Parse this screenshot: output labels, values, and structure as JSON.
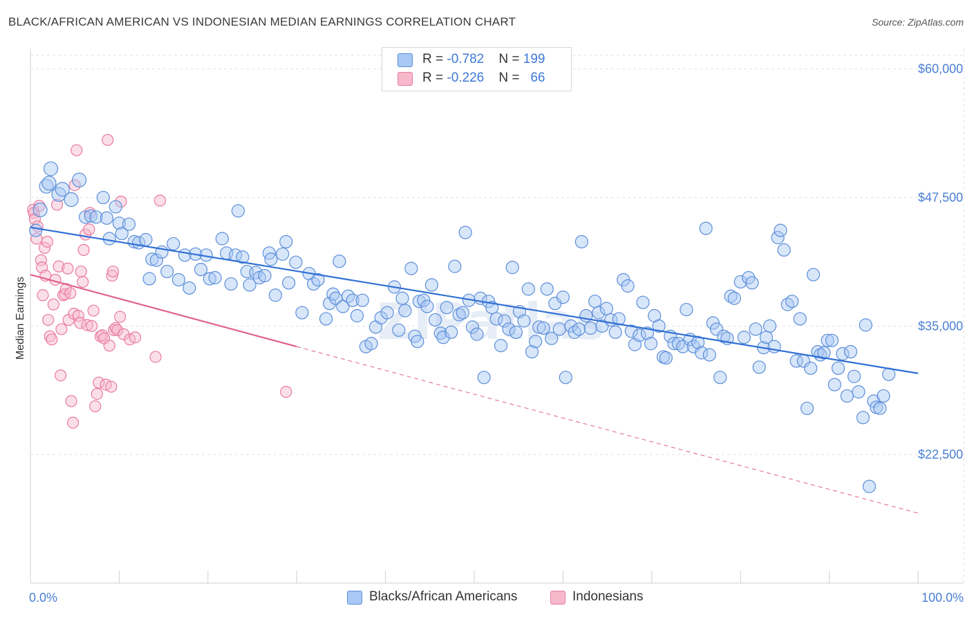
{
  "title": "BLACK/AFRICAN AMERICAN VS INDONESIAN MEDIAN EARNINGS CORRELATION CHART",
  "source": "Source: ZipAtlas.com",
  "watermark": "ZIPatlas",
  "colors": {
    "blue_fill": "#a9c8f3",
    "blue_stroke": "#5b8ed8",
    "blue_line": "#2f6fd4",
    "pink_fill": "#f7b8cc",
    "pink_stroke": "#e97aa0",
    "pink_line": "#e06090",
    "axis_text": "#4a7fd4"
  },
  "legend_top": {
    "rows": [
      {
        "r_label": "R = ",
        "r_value": "-0.782",
        "n_label": "N = ",
        "n_value": "199"
      },
      {
        "r_label": "R = ",
        "r_value": "-0.226",
        "n_label": "N = ",
        "n_value": "66"
      }
    ]
  },
  "legend_bottom": {
    "items": [
      "Blacks/African Americans",
      "Indonesians"
    ]
  },
  "chart_data": {
    "type": "scatter",
    "xlabel": "",
    "ylabel": "Median Earnings",
    "xlim": [
      0,
      100
    ],
    "ylim": [
      10000,
      62000
    ],
    "x_tick_labels": [
      "0.0%",
      "100.0%"
    ],
    "y_ticks": [
      {
        "value": 22500,
        "label": "$22,500"
      },
      {
        "value": 35000,
        "label": "$35,000"
      },
      {
        "value": 47500,
        "label": "$47,500"
      },
      {
        "value": 60000,
        "label": "$60,000"
      }
    ],
    "grid": true,
    "legend_position": "top-center",
    "series": [
      {
        "name": "Blacks/African Americans",
        "trend": {
          "x": [
            0,
            100
          ],
          "y": [
            44600,
            30400
          ],
          "dashed_to": null
        },
        "points": [
          [
            0.6,
            44300
          ],
          [
            1.1,
            46300
          ],
          [
            1.8,
            48600
          ],
          [
            2.1,
            48900
          ],
          [
            2.3,
            50300
          ],
          [
            3.2,
            47800
          ],
          [
            3.6,
            48300
          ],
          [
            4.6,
            47300
          ],
          [
            5.5,
            49200
          ],
          [
            6.2,
            45600
          ],
          [
            6.8,
            45700
          ],
          [
            7.4,
            45600
          ],
          [
            8.2,
            47500
          ],
          [
            8.6,
            45500
          ],
          [
            8.9,
            43500
          ],
          [
            9.6,
            46600
          ],
          [
            10.0,
            45000
          ],
          [
            10.3,
            44000
          ],
          [
            11.1,
            44900
          ],
          [
            11.7,
            43200
          ],
          [
            12.2,
            43100
          ],
          [
            13.0,
            43400
          ],
          [
            13.4,
            39600
          ],
          [
            13.7,
            41500
          ],
          [
            14.2,
            41400
          ],
          [
            14.8,
            42200
          ],
          [
            15.4,
            40300
          ],
          [
            16.1,
            43000
          ],
          [
            16.7,
            39500
          ],
          [
            17.4,
            41900
          ],
          [
            17.9,
            38700
          ],
          [
            18.6,
            42000
          ],
          [
            19.2,
            40500
          ],
          [
            19.8,
            41900
          ],
          [
            20.2,
            39600
          ],
          [
            20.8,
            39700
          ],
          [
            21.6,
            43500
          ],
          [
            22.1,
            42100
          ],
          [
            22.6,
            39100
          ],
          [
            23.1,
            41900
          ],
          [
            23.4,
            46200
          ],
          [
            23.9,
            41700
          ],
          [
            24.4,
            40300
          ],
          [
            24.7,
            39000
          ],
          [
            25.4,
            40200
          ],
          [
            25.8,
            39700
          ],
          [
            26.4,
            39900
          ],
          [
            26.9,
            42100
          ],
          [
            27.1,
            41500
          ],
          [
            27.6,
            38000
          ],
          [
            28.4,
            42000
          ],
          [
            28.8,
            43200
          ],
          [
            29.1,
            39200
          ],
          [
            29.9,
            41200
          ],
          [
            30.6,
            36300
          ],
          [
            31.4,
            40100
          ],
          [
            31.9,
            39100
          ],
          [
            32.4,
            39500
          ],
          [
            33.3,
            35700
          ],
          [
            33.7,
            37200
          ],
          [
            34.1,
            38100
          ],
          [
            34.4,
            37700
          ],
          [
            34.8,
            41300
          ],
          [
            35.2,
            36900
          ],
          [
            35.8,
            37900
          ],
          [
            36.3,
            37500
          ],
          [
            36.8,
            36000
          ],
          [
            37.4,
            37500
          ],
          [
            37.8,
            33000
          ],
          [
            38.4,
            33300
          ],
          [
            38.9,
            34900
          ],
          [
            39.5,
            35800
          ],
          [
            40.2,
            36300
          ],
          [
            41.0,
            38800
          ],
          [
            41.5,
            34600
          ],
          [
            41.9,
            37700
          ],
          [
            42.2,
            36500
          ],
          [
            42.9,
            40600
          ],
          [
            43.3,
            34000
          ],
          [
            43.6,
            33500
          ],
          [
            43.8,
            37400
          ],
          [
            44.3,
            37500
          ],
          [
            44.7,
            36900
          ],
          [
            45.2,
            39000
          ],
          [
            45.6,
            35600
          ],
          [
            46.2,
            34300
          ],
          [
            46.5,
            33900
          ],
          [
            46.9,
            36800
          ],
          [
            47.4,
            34400
          ],
          [
            47.8,
            40800
          ],
          [
            48.3,
            36100
          ],
          [
            48.7,
            36300
          ],
          [
            49.0,
            44100
          ],
          [
            49.4,
            37500
          ],
          [
            49.8,
            34900
          ],
          [
            50.3,
            34200
          ],
          [
            50.7,
            37700
          ],
          [
            51.1,
            30000
          ],
          [
            51.6,
            37400
          ],
          [
            52.0,
            36800
          ],
          [
            52.5,
            35700
          ],
          [
            53.0,
            33100
          ],
          [
            53.4,
            35500
          ],
          [
            53.9,
            34700
          ],
          [
            54.3,
            40700
          ],
          [
            54.7,
            34400
          ],
          [
            55.1,
            36400
          ],
          [
            55.6,
            35500
          ],
          [
            56.1,
            38600
          ],
          [
            56.5,
            32500
          ],
          [
            56.9,
            33500
          ],
          [
            57.3,
            34900
          ],
          [
            57.8,
            34800
          ],
          [
            58.2,
            38600
          ],
          [
            58.7,
            33800
          ],
          [
            59.1,
            37200
          ],
          [
            59.6,
            34700
          ],
          [
            60.0,
            37800
          ],
          [
            60.3,
            30000
          ],
          [
            60.9,
            35000
          ],
          [
            61.3,
            34400
          ],
          [
            61.8,
            34700
          ],
          [
            62.1,
            43200
          ],
          [
            62.6,
            36000
          ],
          [
            63.1,
            34800
          ],
          [
            63.6,
            37400
          ],
          [
            64.0,
            36300
          ],
          [
            64.4,
            35000
          ],
          [
            64.9,
            36700
          ],
          [
            65.4,
            35600
          ],
          [
            65.9,
            34400
          ],
          [
            66.3,
            35700
          ],
          [
            66.8,
            39500
          ],
          [
            67.3,
            38900
          ],
          [
            67.7,
            34500
          ],
          [
            68.1,
            33200
          ],
          [
            68.6,
            34100
          ],
          [
            69.0,
            37300
          ],
          [
            69.5,
            34300
          ],
          [
            69.9,
            33300
          ],
          [
            70.3,
            36000
          ],
          [
            70.8,
            35000
          ],
          [
            71.3,
            32000
          ],
          [
            71.6,
            31900
          ],
          [
            72.1,
            34000
          ],
          [
            72.5,
            33300
          ],
          [
            73.0,
            33300
          ],
          [
            73.5,
            33000
          ],
          [
            73.9,
            36600
          ],
          [
            74.3,
            33700
          ],
          [
            74.7,
            33000
          ],
          [
            75.2,
            33400
          ],
          [
            75.6,
            32400
          ],
          [
            76.1,
            44500
          ],
          [
            76.5,
            32200
          ],
          [
            76.9,
            35300
          ],
          [
            77.3,
            34700
          ],
          [
            77.7,
            30000
          ],
          [
            78.1,
            34000
          ],
          [
            78.5,
            33800
          ],
          [
            78.9,
            37900
          ],
          [
            79.3,
            37700
          ],
          [
            80.0,
            39300
          ],
          [
            80.4,
            33900
          ],
          [
            80.9,
            39700
          ],
          [
            81.3,
            39200
          ],
          [
            81.7,
            34700
          ],
          [
            82.1,
            31000
          ],
          [
            82.6,
            32900
          ],
          [
            82.9,
            33900
          ],
          [
            83.3,
            35000
          ],
          [
            83.8,
            33000
          ],
          [
            84.2,
            43600
          ],
          [
            84.5,
            44300
          ],
          [
            84.9,
            42400
          ],
          [
            85.3,
            37100
          ],
          [
            85.8,
            37400
          ],
          [
            86.3,
            31600
          ],
          [
            86.7,
            35700
          ],
          [
            87.1,
            31600
          ],
          [
            87.5,
            27000
          ],
          [
            87.9,
            30900
          ],
          [
            88.2,
            40000
          ],
          [
            88.7,
            32500
          ],
          [
            89.0,
            32200
          ],
          [
            89.4,
            32400
          ],
          [
            89.8,
            33600
          ],
          [
            90.3,
            33600
          ],
          [
            90.6,
            29300
          ],
          [
            91.0,
            30900
          ],
          [
            91.5,
            32300
          ],
          [
            92.0,
            28200
          ],
          [
            92.4,
            32500
          ],
          [
            92.8,
            30100
          ],
          [
            93.3,
            28600
          ],
          [
            93.8,
            26100
          ],
          [
            94.1,
            35100
          ],
          [
            94.5,
            19400
          ],
          [
            95.0,
            27700
          ],
          [
            95.3,
            27100
          ],
          [
            95.7,
            27000
          ],
          [
            96.1,
            28200
          ],
          [
            96.7,
            30300
          ]
        ]
      },
      {
        "name": "Indonesians",
        "trend": {
          "x": [
            0,
            30
          ],
          "y": [
            40000,
            33000
          ],
          "dashed_to": [
            100,
            16800
          ]
        },
        "points": [
          [
            0.3,
            46300
          ],
          [
            0.4,
            46000
          ],
          [
            0.5,
            45400
          ],
          [
            0.7,
            43500
          ],
          [
            0.8,
            44700
          ],
          [
            1.0,
            46700
          ],
          [
            1.2,
            41400
          ],
          [
            1.3,
            40700
          ],
          [
            1.4,
            38000
          ],
          [
            1.6,
            42600
          ],
          [
            1.7,
            39900
          ],
          [
            1.9,
            43200
          ],
          [
            2.0,
            35600
          ],
          [
            2.2,
            34000
          ],
          [
            2.4,
            33700
          ],
          [
            2.6,
            37100
          ],
          [
            2.8,
            39500
          ],
          [
            3.0,
            46800
          ],
          [
            3.2,
            40800
          ],
          [
            3.4,
            30200
          ],
          [
            3.5,
            34700
          ],
          [
            3.7,
            38000
          ],
          [
            3.9,
            38100
          ],
          [
            4.0,
            38600
          ],
          [
            4.2,
            40600
          ],
          [
            4.3,
            35600
          ],
          [
            4.5,
            38200
          ],
          [
            4.6,
            27700
          ],
          [
            4.8,
            25600
          ],
          [
            4.9,
            36200
          ],
          [
            5.0,
            48700
          ],
          [
            5.2,
            52100
          ],
          [
            5.4,
            36000
          ],
          [
            5.6,
            35300
          ],
          [
            5.7,
            40300
          ],
          [
            5.9,
            39300
          ],
          [
            6.0,
            42400
          ],
          [
            6.2,
            43900
          ],
          [
            6.4,
            35100
          ],
          [
            6.6,
            44400
          ],
          [
            6.7,
            46000
          ],
          [
            6.9,
            35000
          ],
          [
            7.1,
            36500
          ],
          [
            7.3,
            27200
          ],
          [
            7.5,
            28400
          ],
          [
            7.7,
            29500
          ],
          [
            7.9,
            34000
          ],
          [
            8.1,
            34100
          ],
          [
            8.3,
            33800
          ],
          [
            8.5,
            29300
          ],
          [
            8.7,
            53100
          ],
          [
            8.9,
            33100
          ],
          [
            9.1,
            29100
          ],
          [
            9.2,
            39900
          ],
          [
            9.3,
            40300
          ],
          [
            9.4,
            34600
          ],
          [
            9.6,
            34800
          ],
          [
            9.8,
            34600
          ],
          [
            10.1,
            35900
          ],
          [
            10.2,
            47100
          ],
          [
            10.5,
            34200
          ],
          [
            11.2,
            33700
          ],
          [
            11.8,
            33900
          ],
          [
            14.1,
            32000
          ],
          [
            14.6,
            47200
          ],
          [
            28.8,
            28600
          ]
        ]
      }
    ]
  }
}
